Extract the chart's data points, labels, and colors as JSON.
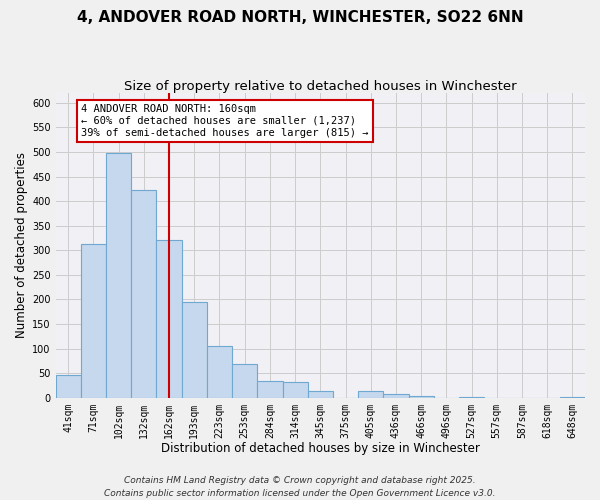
{
  "title": "4, ANDOVER ROAD NORTH, WINCHESTER, SO22 6NN",
  "subtitle": "Size of property relative to detached houses in Winchester",
  "xlabel": "Distribution of detached houses by size in Winchester",
  "ylabel": "Number of detached properties",
  "categories": [
    "41sqm",
    "71sqm",
    "102sqm",
    "132sqm",
    "162sqm",
    "193sqm",
    "223sqm",
    "253sqm",
    "284sqm",
    "314sqm",
    "345sqm",
    "375sqm",
    "405sqm",
    "436sqm",
    "466sqm",
    "496sqm",
    "527sqm",
    "557sqm",
    "587sqm",
    "618sqm",
    "648sqm"
  ],
  "values": [
    46,
    312,
    497,
    423,
    320,
    195,
    105,
    68,
    35,
    32,
    13,
    0,
    14,
    8,
    3,
    0,
    2,
    0,
    0,
    0,
    1
  ],
  "bar_color": "#c5d8ed",
  "bar_edge_color": "#6fa8d0",
  "vline_x": 4,
  "vline_color": "#cc0000",
  "annotation_line1": "4 ANDOVER ROAD NORTH: 160sqm",
  "annotation_line2": "← 60% of detached houses are smaller (1,237)",
  "annotation_line3": "39% of semi-detached houses are larger (815) →",
  "ylim": [
    0,
    620
  ],
  "yticks": [
    0,
    50,
    100,
    150,
    200,
    250,
    300,
    350,
    400,
    450,
    500,
    550,
    600
  ],
  "footnote1": "Contains HM Land Registry data © Crown copyright and database right 2025.",
  "footnote2": "Contains public sector information licensed under the Open Government Licence v3.0.",
  "background_color": "#f0f0f0",
  "plot_bg_color": "#f0f0f5",
  "grid_color": "#cccccc",
  "title_fontsize": 11,
  "subtitle_fontsize": 9.5,
  "axis_label_fontsize": 8.5,
  "tick_fontsize": 7,
  "annotation_fontsize": 7.5,
  "footnote_fontsize": 6.5
}
